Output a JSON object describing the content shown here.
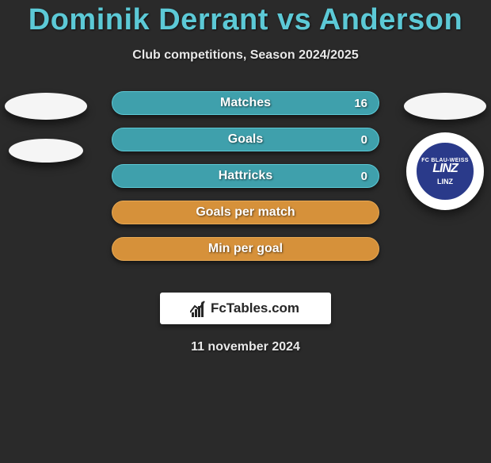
{
  "title": "Dominik Derrant vs Anderson",
  "subtitle": "Club competitions, Season 2024/2025",
  "date": "11 november 2024",
  "footer": {
    "brand": "FcTables.com"
  },
  "colors": {
    "background": "#2a2a2a",
    "title": "#5cc9d6",
    "teal_bar": "#3fa0ac",
    "orange_bar": "#d6913a",
    "badge_bg": "#2a3a8a"
  },
  "stats": [
    {
      "label": "Matches",
      "value": "16",
      "color": "teal"
    },
    {
      "label": "Goals",
      "value": "0",
      "color": "teal"
    },
    {
      "label": "Hattricks",
      "value": "0",
      "color": "teal"
    },
    {
      "label": "Goals per match",
      "value": "",
      "color": "orange"
    },
    {
      "label": "Min per goal",
      "value": "",
      "color": "orange"
    }
  ],
  "player_right": {
    "club": {
      "top": "FC BLAU-WEISS",
      "mid": "LINZ",
      "bot": "LINZ"
    }
  }
}
